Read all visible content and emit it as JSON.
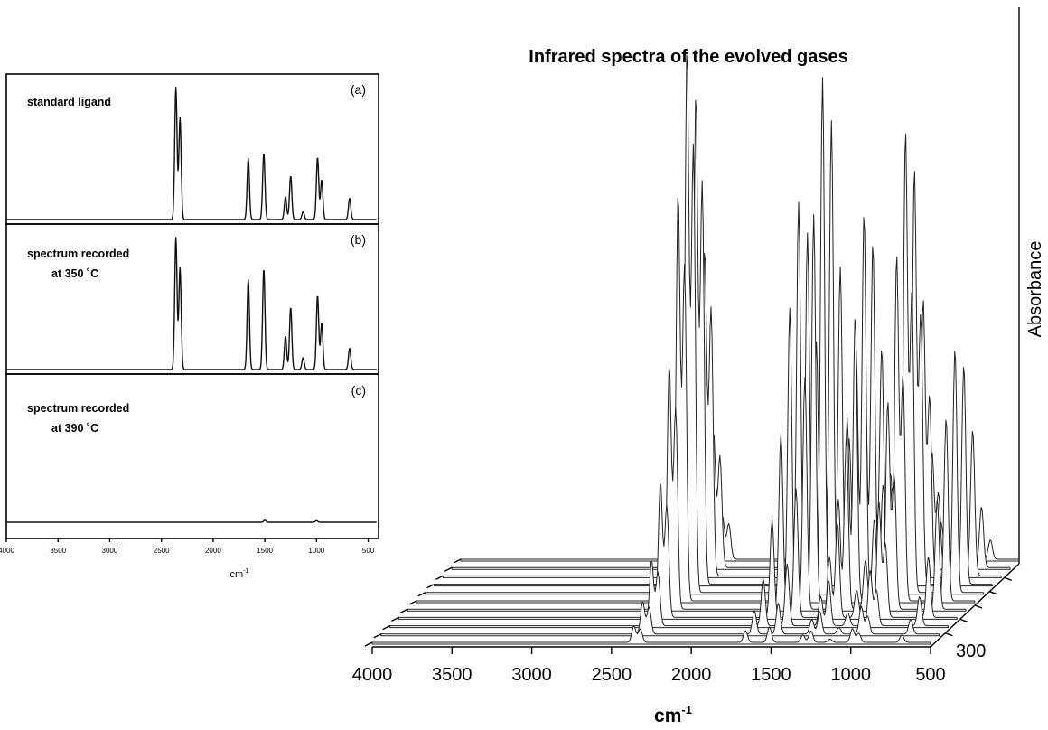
{
  "chart_data": [
    {
      "type": "line",
      "panels": [
        {
          "tag": "(a)",
          "label_lines": [
            "standard ligand"
          ],
          "baseline": 0.0,
          "peaks": [
            {
              "x": 2360,
              "y": 1.0
            },
            {
              "x": 2320,
              "y": 0.77
            },
            {
              "x": 1660,
              "y": 0.46
            },
            {
              "x": 1510,
              "y": 0.5
            },
            {
              "x": 1300,
              "y": 0.17
            },
            {
              "x": 1250,
              "y": 0.33
            },
            {
              "x": 1130,
              "y": 0.06
            },
            {
              "x": 990,
              "y": 0.47
            },
            {
              "x": 950,
              "y": 0.3
            },
            {
              "x": 680,
              "y": 0.16
            }
          ]
        },
        {
          "tag": "(b)",
          "label_lines": [
            "spectrum recorded",
            "at 350 ˚C"
          ],
          "baseline": 0.0,
          "peaks": [
            {
              "x": 2360,
              "y": 1.0
            },
            {
              "x": 2320,
              "y": 0.77
            },
            {
              "x": 1660,
              "y": 0.68
            },
            {
              "x": 1510,
              "y": 0.76
            },
            {
              "x": 1300,
              "y": 0.25
            },
            {
              "x": 1250,
              "y": 0.47
            },
            {
              "x": 1130,
              "y": 0.09
            },
            {
              "x": 990,
              "y": 0.56
            },
            {
              "x": 950,
              "y": 0.35
            },
            {
              "x": 680,
              "y": 0.16
            }
          ]
        },
        {
          "tag": "(c)",
          "label_lines": [
            "spectrum recorded",
            "at 390 ˚C"
          ],
          "baseline": 0.0,
          "peaks": [
            {
              "x": 1500,
              "y": 0.015
            },
            {
              "x": 1000,
              "y": 0.012
            }
          ]
        }
      ],
      "x_ticks": [
        4000,
        3500,
        3000,
        2500,
        2000,
        1500,
        1000,
        500
      ],
      "xlim": [
        4000,
        400
      ],
      "xlabel": "cm",
      "xlabel_sup": "-1"
    },
    {
      "type": "line",
      "title": "Infrared spectra of the evolved gases",
      "xlabel": "cm",
      "xlabel_sup": "-1",
      "zlabel": "Absorbance",
      "x_ticks": [
        4000,
        3500,
        3000,
        2500,
        2000,
        1500,
        1000,
        500
      ],
      "xlim": [
        4000,
        500
      ],
      "depth_ticks": [
        300
      ],
      "series": [
        {
          "scale": 0.03
        },
        {
          "scale": 0.06
        },
        {
          "scale": 0.12
        },
        {
          "scale": 0.25
        },
        {
          "scale": 0.45
        },
        {
          "scale": 0.75
        },
        {
          "scale": 1.0
        },
        {
          "scale": 0.9
        },
        {
          "scale": 0.6
        },
        {
          "scale": 0.25
        },
        {
          "scale": 0.08
        }
      ],
      "peaks": [
        {
          "x": 2360,
          "y": 1.0
        },
        {
          "x": 2320,
          "y": 0.82
        },
        {
          "x": 1660,
          "y": 0.72
        },
        {
          "x": 1510,
          "y": 0.95
        },
        {
          "x": 1300,
          "y": 0.45
        },
        {
          "x": 1250,
          "y": 0.7
        },
        {
          "x": 1130,
          "y": 0.2
        },
        {
          "x": 990,
          "y": 0.85
        },
        {
          "x": 950,
          "y": 0.55
        },
        {
          "x": 680,
          "y": 0.45
        }
      ]
    }
  ]
}
